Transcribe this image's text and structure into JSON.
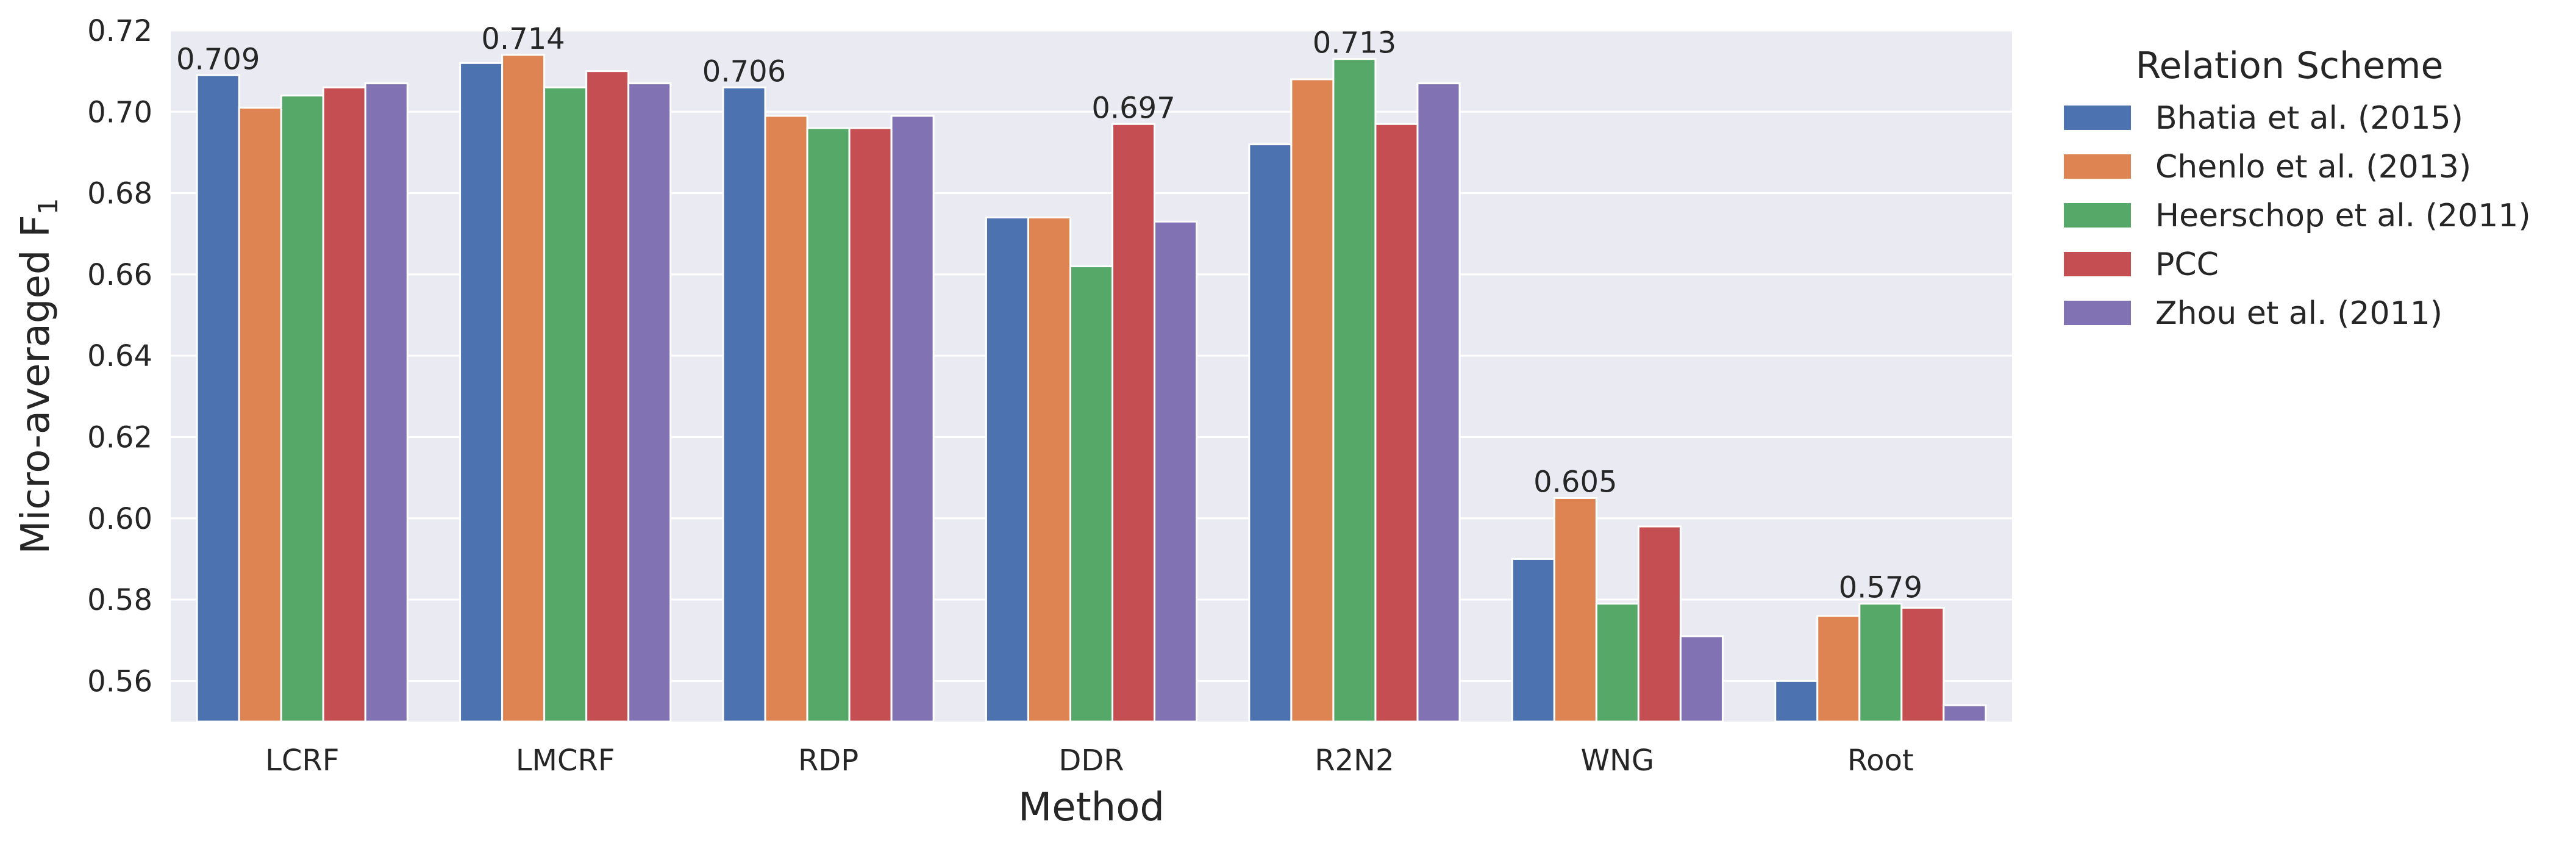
{
  "chart_data": {
    "type": "bar",
    "xlabel": "Method",
    "ylabel": "Micro-averaged F",
    "ylabel_subscript": "1",
    "ylim": [
      0.55,
      0.72
    ],
    "yticks": [
      0.56,
      0.58,
      0.6,
      0.62,
      0.64,
      0.66,
      0.68,
      0.7,
      0.72
    ],
    "ytick_labels": [
      "0.56",
      "0.58",
      "0.60",
      "0.62",
      "0.64",
      "0.66",
      "0.68",
      "0.70",
      "0.72"
    ],
    "grid": true,
    "categories": [
      "LCRF",
      "LMCRF",
      "RDP",
      "DDR",
      "R2N2",
      "WNG",
      "Root"
    ],
    "legend": {
      "title": "Relation Scheme",
      "placement": "outside-right"
    },
    "series": [
      {
        "name": "Bhatia et al. (2015)",
        "color": "#4c72b0",
        "values": [
          0.709,
          0.712,
          0.706,
          0.674,
          0.692,
          0.59,
          0.56
        ]
      },
      {
        "name": "Chenlo et al. (2013)",
        "color": "#dd8452",
        "values": [
          0.701,
          0.714,
          0.699,
          0.674,
          0.708,
          0.605,
          0.576
        ]
      },
      {
        "name": "Heerschop et al. (2011)",
        "color": "#55a868",
        "values": [
          0.704,
          0.706,
          0.696,
          0.662,
          0.713,
          0.579,
          0.579
        ]
      },
      {
        "name": "PCC",
        "color": "#c44e52",
        "values": [
          0.706,
          0.71,
          0.696,
          0.697,
          0.697,
          0.598,
          0.578
        ]
      },
      {
        "name": "Zhou et al. (2011)",
        "color": "#8172b3",
        "values": [
          0.707,
          0.707,
          0.699,
          0.673,
          0.707,
          0.571,
          0.554
        ]
      }
    ],
    "annotations": [
      {
        "category": "LCRF",
        "series": "Bhatia et al. (2015)",
        "text": "0.709"
      },
      {
        "category": "LMCRF",
        "series": "Chenlo et al. (2013)",
        "text": "0.714"
      },
      {
        "category": "RDP",
        "series": "Bhatia et al. (2015)",
        "text": "0.706"
      },
      {
        "category": "DDR",
        "series": "PCC",
        "text": "0.697"
      },
      {
        "category": "R2N2",
        "series": "Heerschop et al. (2011)",
        "text": "0.713"
      },
      {
        "category": "WNG",
        "series": "Chenlo et al. (2013)",
        "text": "0.605"
      },
      {
        "category": "Root",
        "series": "Heerschop et al. (2011)",
        "text": "0.579"
      }
    ],
    "colors": {
      "plot_background": "#eaeaf2",
      "grid": "#ffffff",
      "text": "#262626"
    }
  }
}
